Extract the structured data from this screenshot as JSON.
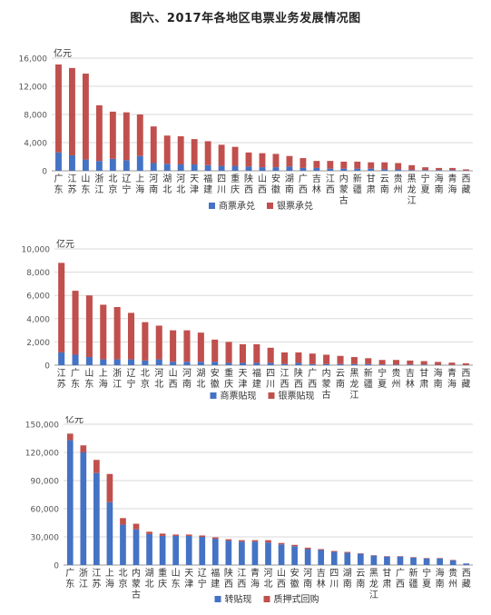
{
  "title": "图六、2017年各地区电票业务发展情况图",
  "chart_data": [
    {
      "type": "bar",
      "stacked": true,
      "unit": "亿元",
      "ylim": [
        0,
        16000
      ],
      "yticks": [
        0,
        4000,
        8000,
        12000,
        16000
      ],
      "ytick_labels": [
        "0",
        "4,000",
        "8,000",
        "12,000",
        "16,000"
      ],
      "grid": true,
      "legend_position": "bottom",
      "categories": [
        "广东",
        "江苏",
        "山东",
        "浙江",
        "北京",
        "辽宁",
        "上海",
        "河南",
        "湖北",
        "河北",
        "天津",
        "福建",
        "四川",
        "重庆",
        "陕西",
        "山西",
        "安徽",
        "湖南",
        "广西",
        "吉林",
        "江西",
        "内蒙古",
        "新疆",
        "甘肃",
        "云南",
        "贵州",
        "黑龙江",
        "宁夏",
        "海南",
        "青海",
        "西藏"
      ],
      "series": [
        {
          "name": "商票承兑",
          "color": "#4472c4",
          "values": [
            2600,
            2200,
            1600,
            1400,
            1700,
            1500,
            2100,
            1100,
            1000,
            900,
            900,
            800,
            700,
            700,
            600,
            500,
            500,
            600,
            400,
            400,
            300,
            300,
            300,
            300,
            200,
            200,
            100,
            100,
            100,
            100,
            50
          ]
        },
        {
          "name": "银票承兑",
          "color": "#c0504d",
          "values": [
            12500,
            12400,
            12200,
            7900,
            6700,
            6800,
            5900,
            5200,
            4000,
            4000,
            3600,
            3400,
            3000,
            2700,
            2000,
            2000,
            1900,
            1500,
            1400,
            1000,
            1100,
            1000,
            1000,
            900,
            1000,
            900,
            700,
            400,
            300,
            300,
            150
          ]
        }
      ]
    },
    {
      "type": "bar",
      "stacked": true,
      "unit": "亿元",
      "ylim": [
        0,
        10000
      ],
      "yticks": [
        0,
        2000,
        4000,
        6000,
        8000,
        10000
      ],
      "ytick_labels": [
        "0",
        "2,000",
        "4,000",
        "6,000",
        "8,000",
        "10,000"
      ],
      "grid": true,
      "legend_position": "bottom",
      "categories": [
        "江苏",
        "广东",
        "山东",
        "上海",
        "浙江",
        "辽宁",
        "北京",
        "河北",
        "山西",
        "河南",
        "湖北",
        "安徽",
        "重庆",
        "天津",
        "福建",
        "四川",
        "江西",
        "陕西",
        "广西",
        "内蒙古",
        "云南",
        "黑龙江",
        "新疆",
        "宁夏",
        "贵州",
        "吉林",
        "甘肃",
        "海南",
        "青海",
        "西藏"
      ],
      "series": [
        {
          "name": "商票贴现",
          "color": "#4472c4",
          "values": [
            1100,
            900,
            700,
            500,
            500,
            500,
            400,
            500,
            300,
            300,
            300,
            300,
            200,
            200,
            200,
            200,
            100,
            200,
            100,
            100,
            100,
            100,
            100,
            50,
            50,
            50,
            50,
            30,
            20,
            10
          ]
        },
        {
          "name": "银票贴现",
          "color": "#c0504d",
          "values": [
            7700,
            5500,
            5300,
            4700,
            4500,
            4000,
            3300,
            2900,
            2700,
            2700,
            2500,
            1900,
            1800,
            1600,
            1600,
            1300,
            1000,
            900,
            900,
            800,
            700,
            600,
            500,
            400,
            400,
            350,
            300,
            250,
            200,
            150
          ]
        }
      ]
    },
    {
      "type": "bar",
      "stacked": true,
      "unit": "亿元",
      "ylim": [
        0,
        150000
      ],
      "yticks": [
        0,
        30000,
        60000,
        90000,
        120000,
        150000
      ],
      "ytick_labels": [
        "0",
        "30,000",
        "60,000",
        "90,000",
        "120,000",
        "150,000"
      ],
      "grid": true,
      "legend_position": "bottom",
      "categories": [
        "广东",
        "浙江",
        "江苏",
        "上海",
        "北京",
        "内蒙古",
        "湖北",
        "重庆",
        "山东",
        "天津",
        "辽宁",
        "福建",
        "陕西",
        "江西",
        "青海",
        "河北",
        "山西",
        "安徽",
        "河南",
        "吉林",
        "四川",
        "湖南",
        "云南",
        "黑龙江",
        "甘肃",
        "广西",
        "新疆",
        "宁夏",
        "海南",
        "贵州",
        "西藏"
      ],
      "series": [
        {
          "name": "转贴现",
          "color": "#4472c4",
          "values": [
            133000,
            120000,
            98000,
            67000,
            43000,
            38000,
            33000,
            31000,
            31000,
            31000,
            30000,
            28000,
            26000,
            25000,
            25000,
            24000,
            22000,
            20000,
            17000,
            16000,
            14000,
            13000,
            12000,
            10000,
            9000,
            9000,
            8000,
            7000,
            7000,
            5000,
            1500
          ]
        },
        {
          "name": "质押式回购",
          "color": "#c0504d",
          "values": [
            7000,
            7500,
            14000,
            30000,
            7000,
            6000,
            2500,
            2500,
            1500,
            1500,
            1500,
            1500,
            1500,
            1500,
            1500,
            2500,
            1500,
            1500,
            1500,
            1000,
            1000,
            1000,
            500,
            500,
            500,
            500,
            500,
            500,
            500,
            500,
            200
          ]
        }
      ]
    }
  ]
}
